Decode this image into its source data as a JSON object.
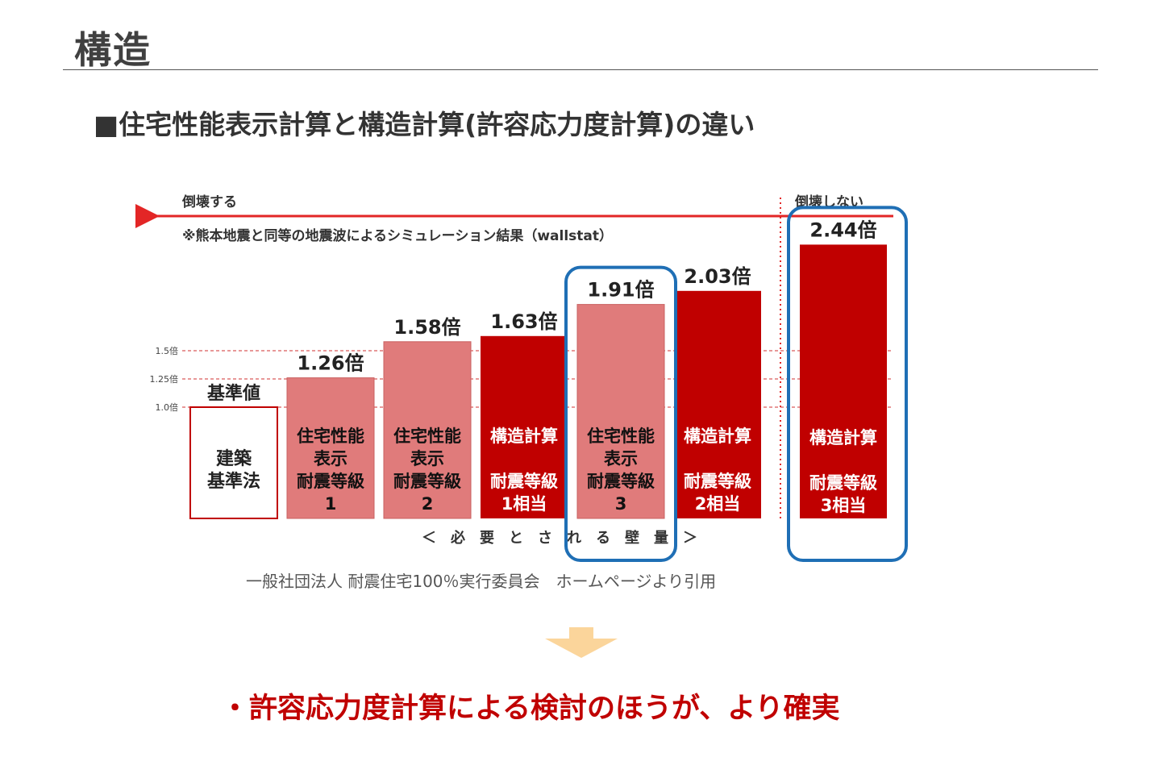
{
  "page": {
    "title": "構造",
    "subtitle": "■住宅性能表示計算と構造計算(許容応力度計算)の違い",
    "source": "一般社団法人 耐震住宅100％実行委員会　ホームページより引用",
    "conclusion": "・許容応力度計算による検討のほうが、より確実"
  },
  "chart_data": {
    "type": "bar",
    "arrow_left_label": "倒壊する",
    "arrow_right_label": "倒壊しない",
    "note": "※熊本地震と同等の地震波によるシミュレーション結果（wallstat）",
    "xlabel": "＜　必　要　と　さ　れ　る　壁　量　＞",
    "reference_lines": [
      {
        "value": 1.5,
        "label": "1.5倍"
      },
      {
        "value": 1.25,
        "label": "1.25倍"
      },
      {
        "value": 1.0,
        "label": "1.0倍"
      }
    ],
    "bars": [
      {
        "value": 1.0,
        "value_label": "基準値",
        "lines": [
          "建築",
          "基準法"
        ],
        "style": "outline",
        "highlight": false
      },
      {
        "value": 1.26,
        "value_label": "1.26倍",
        "lines": [
          "住宅性能",
          "表示",
          "耐震等級",
          "1"
        ],
        "style": "light",
        "highlight": false
      },
      {
        "value": 1.58,
        "value_label": "1.58倍",
        "lines": [
          "住宅性能",
          "表示",
          "耐震等級",
          "2"
        ],
        "style": "light",
        "highlight": false
      },
      {
        "value": 1.63,
        "value_label": "1.63倍",
        "lines": [
          "構造計算",
          "",
          "耐震等級",
          "1相当"
        ],
        "style": "dark",
        "highlight": false
      },
      {
        "value": 1.91,
        "value_label": "1.91倍",
        "lines": [
          "住宅性能",
          "表示",
          "耐震等級",
          "3"
        ],
        "style": "light",
        "highlight": true
      },
      {
        "value": 2.03,
        "value_label": "2.03倍",
        "lines": [
          "構造計算",
          "",
          "耐震等級",
          "2相当"
        ],
        "style": "dark",
        "highlight": false
      },
      {
        "value": 2.44,
        "value_label": "2.44倍",
        "lines": [
          "構造計算",
          "",
          "耐震等級",
          "3相当"
        ],
        "style": "dark",
        "highlight": true
      }
    ],
    "colors": {
      "dark": "#c00000",
      "light": "#e07b7b",
      "highlight": "#1f6fb5",
      "arrow": "#e32626"
    }
  }
}
